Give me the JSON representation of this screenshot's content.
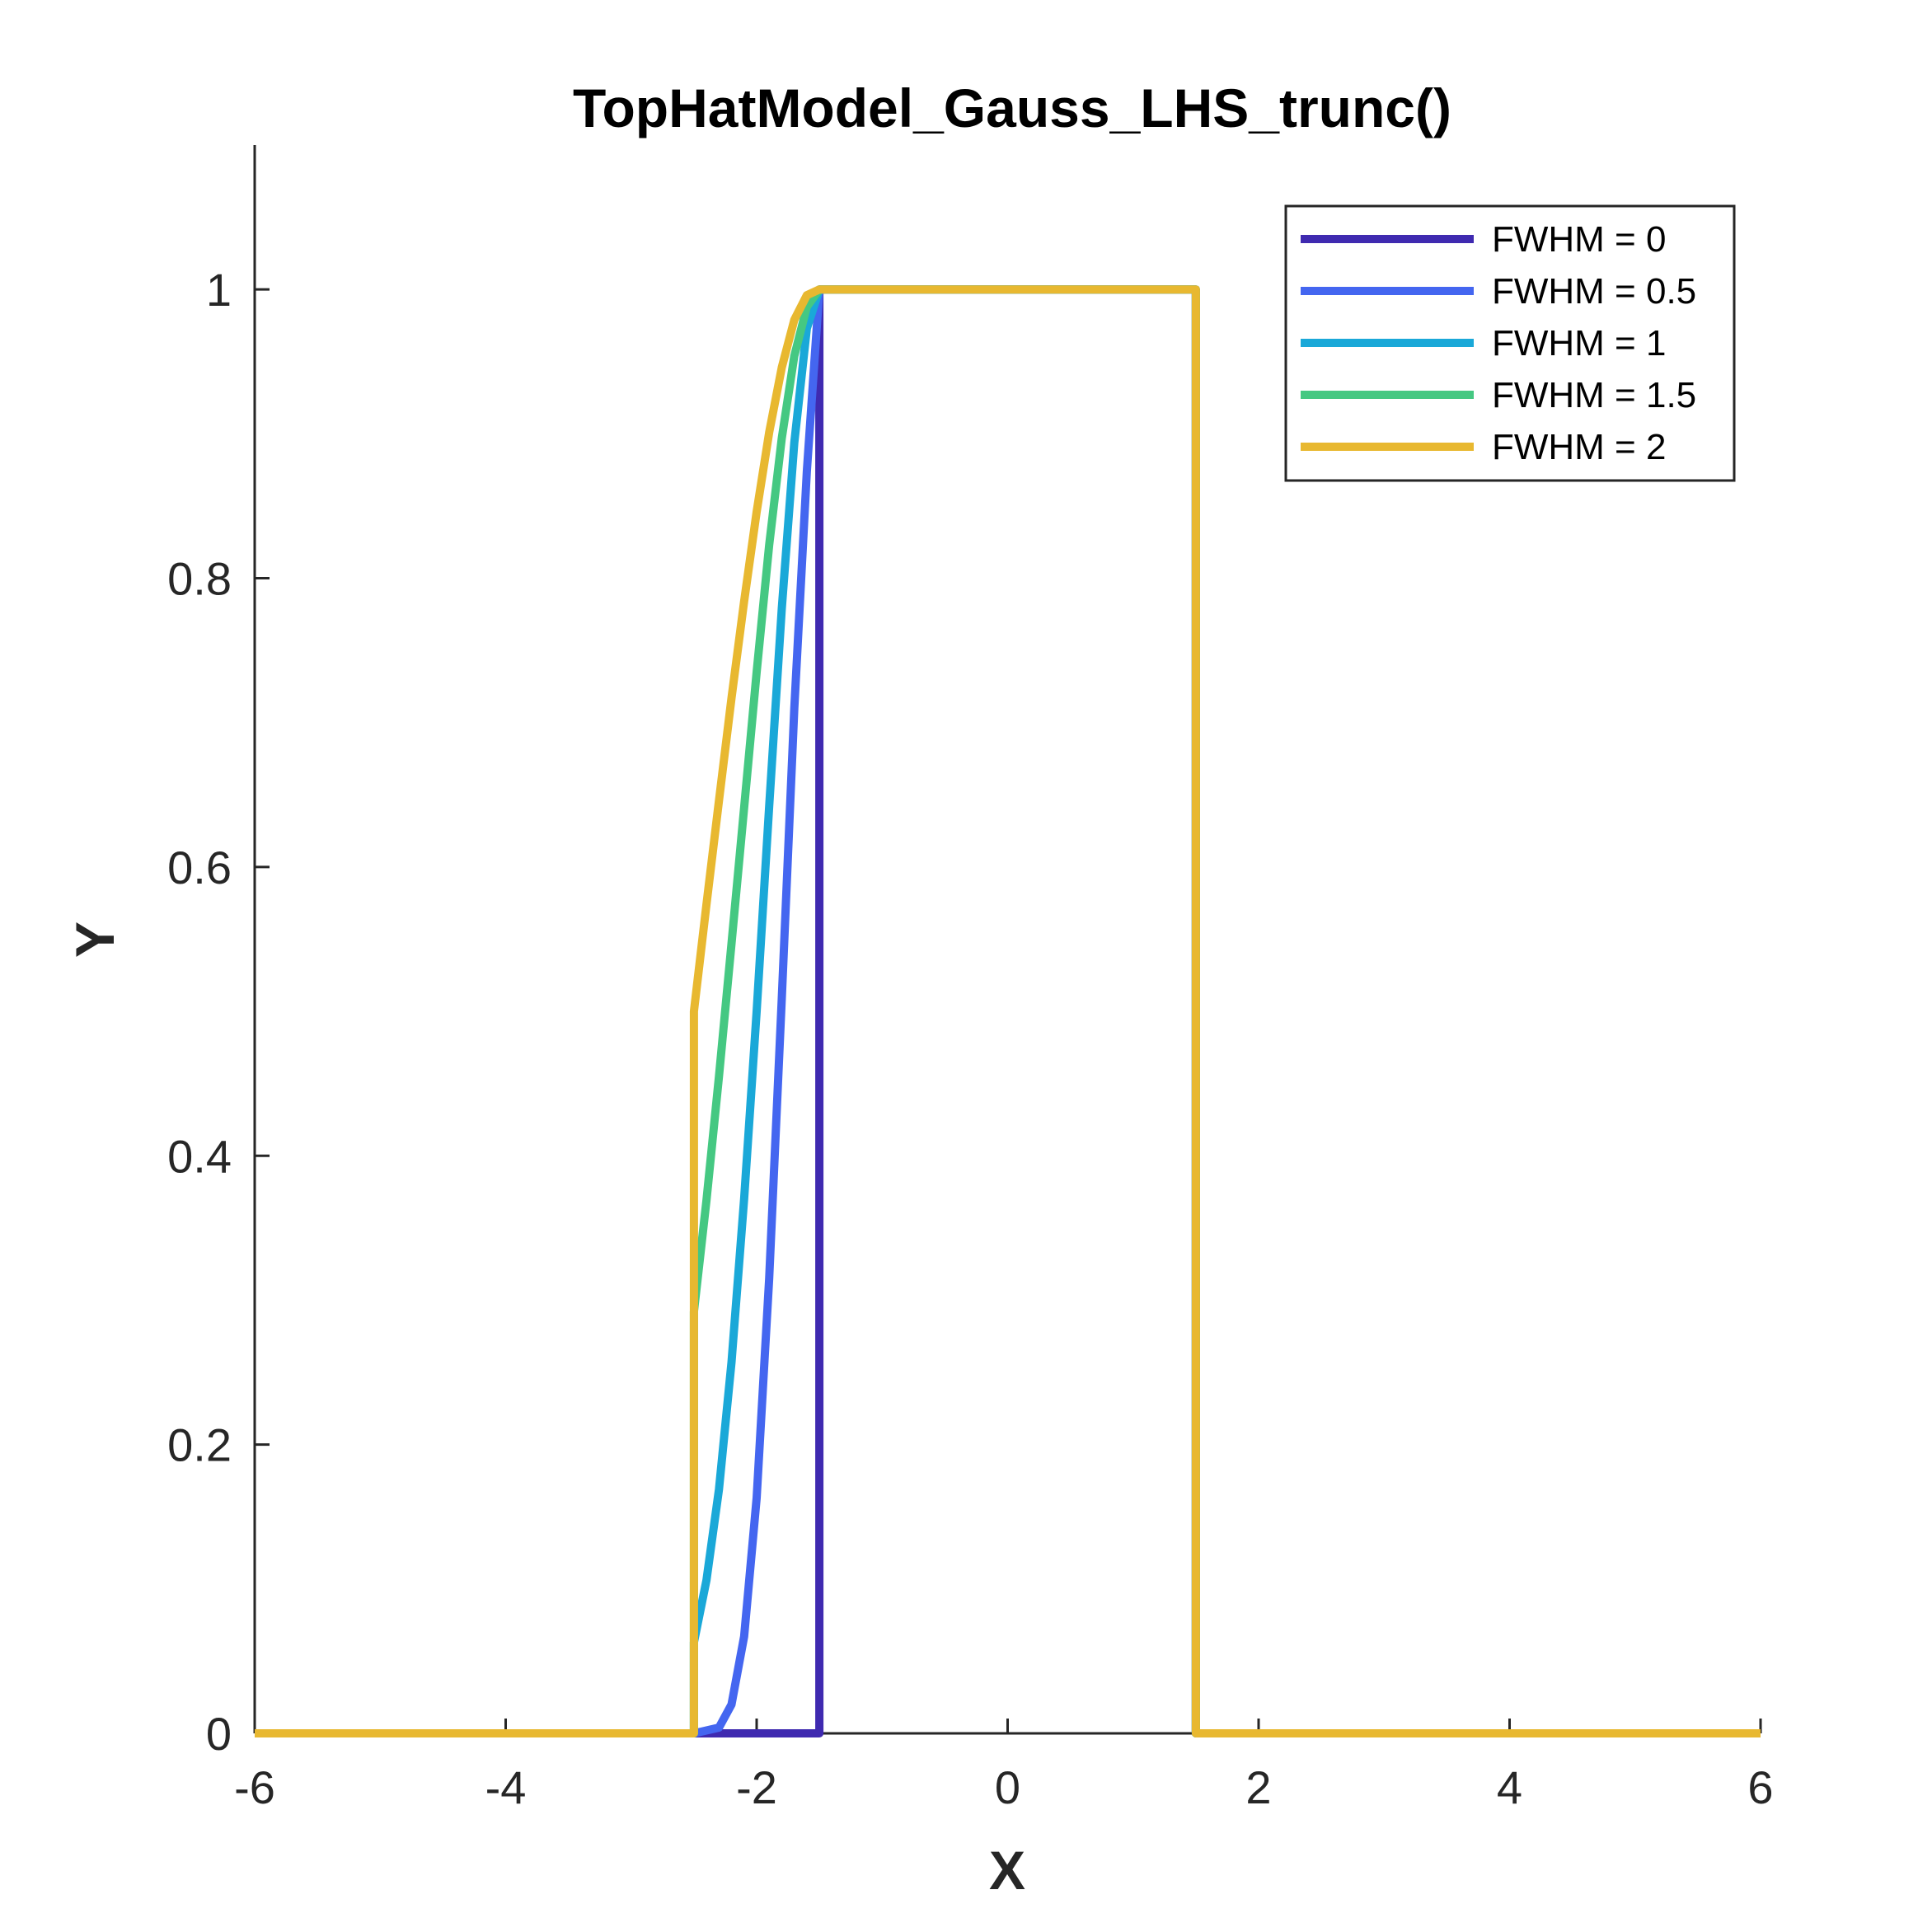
{
  "chart_data": {
    "type": "line",
    "title": "TopHatModel_Gauss_LHS_trunc()",
    "xlabel": "X",
    "ylabel": "Y",
    "xlim": [
      -6,
      6
    ],
    "ylim": [
      0,
      1.1
    ],
    "xticks": [
      -6,
      -4,
      -2,
      0,
      2,
      4,
      6
    ],
    "xtick_labels": [
      "-6",
      "-4",
      "-2",
      "0",
      "2",
      "4",
      "6"
    ],
    "yticks": [
      0,
      0.2,
      0.4,
      0.6,
      0.8,
      1
    ],
    "ytick_labels": [
      "0",
      "0.2",
      "0.4",
      "0.6",
      "0.8",
      "1"
    ],
    "grid": false,
    "legend_position": "top-right",
    "series": [
      {
        "name": "FWHM = 0",
        "color": "#3f2ab0",
        "x": [
          -6,
          -2.5,
          -1.5,
          -1.5,
          1.5,
          1.5,
          6
        ],
        "y": [
          0,
          0,
          0,
          1,
          1,
          0,
          0
        ]
      },
      {
        "name": "FWHM = 0.5",
        "color": "#4466f0",
        "x": [
          -6,
          -2.5,
          -2.3,
          -2.2,
          -2.1,
          -2.0,
          -1.9,
          -1.8,
          -1.7,
          -1.6,
          -1.5,
          1.5,
          1.5,
          6
        ],
        "y": [
          0,
          0,
          0.004,
          0.02,
          0.067,
          0.163,
          0.315,
          0.509,
          0.71,
          0.874,
          1,
          1,
          0,
          0
        ]
      },
      {
        "name": "FWHM = 1",
        "color": "#1aa8d8",
        "x": [
          -6,
          -2.5,
          -2.5,
          -2.4,
          -2.3,
          -2.2,
          -2.1,
          -2.0,
          -1.9,
          -1.8,
          -1.7,
          -1.6,
          -1.5,
          1.5,
          1.5,
          6
        ],
        "y": [
          0,
          0,
          0.063,
          0.106,
          0.169,
          0.257,
          0.37,
          0.5,
          0.642,
          0.779,
          0.894,
          0.973,
          1,
          1,
          0,
          0
        ]
      },
      {
        "name": "FWHM = 1.5",
        "color": "#45c882",
        "x": [
          -6,
          -2.5,
          -2.5,
          -2.4,
          -2.3,
          -2.2,
          -2.1,
          -2.0,
          -1.9,
          -1.8,
          -1.7,
          -1.6,
          -1.5,
          1.5,
          1.5,
          6
        ],
        "y": [
          0,
          0,
          0.292,
          0.369,
          0.455,
          0.547,
          0.641,
          0.735,
          0.823,
          0.897,
          0.954,
          0.988,
          1,
          1,
          0,
          0
        ]
      },
      {
        "name": "FWHM = 2",
        "color": "#e8b830",
        "x": [
          -6,
          -2.5,
          -2.5,
          -2.4,
          -2.3,
          -2.2,
          -2.1,
          -2.0,
          -1.9,
          -1.8,
          -1.7,
          -1.6,
          -1.5,
          1.5,
          1.5,
          6
        ],
        "y": [
          0,
          0,
          0.5,
          0.574,
          0.646,
          0.717,
          0.784,
          0.846,
          0.901,
          0.946,
          0.979,
          0.996,
          1,
          1,
          0,
          0
        ]
      }
    ]
  }
}
